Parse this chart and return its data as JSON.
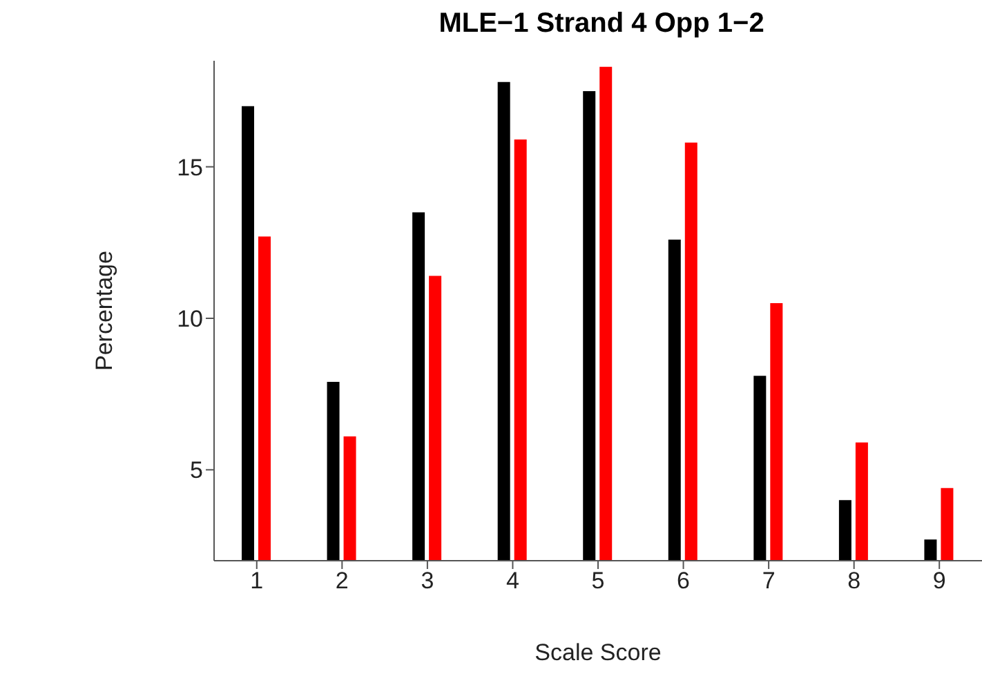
{
  "chart_data": {
    "type": "bar",
    "title": "MLE−1 Strand 4 Opp 1−2",
    "xlabel": "Scale Score",
    "ylabel": "Percentage",
    "categories": [
      "1",
      "2",
      "3",
      "4",
      "5",
      "6",
      "7",
      "8",
      "9"
    ],
    "series": [
      {
        "color": "#000000",
        "values": [
          17.0,
          7.9,
          13.5,
          17.8,
          17.5,
          12.6,
          8.1,
          4.0,
          2.7
        ]
      },
      {
        "color": "#ff0000",
        "values": [
          12.7,
          6.1,
          11.4,
          15.9,
          18.3,
          15.8,
          10.5,
          5.9,
          4.4
        ]
      }
    ],
    "ylim": [
      2,
      18.5
    ],
    "yticks": [
      5,
      10,
      15
    ],
    "grid": false,
    "legend": false
  }
}
